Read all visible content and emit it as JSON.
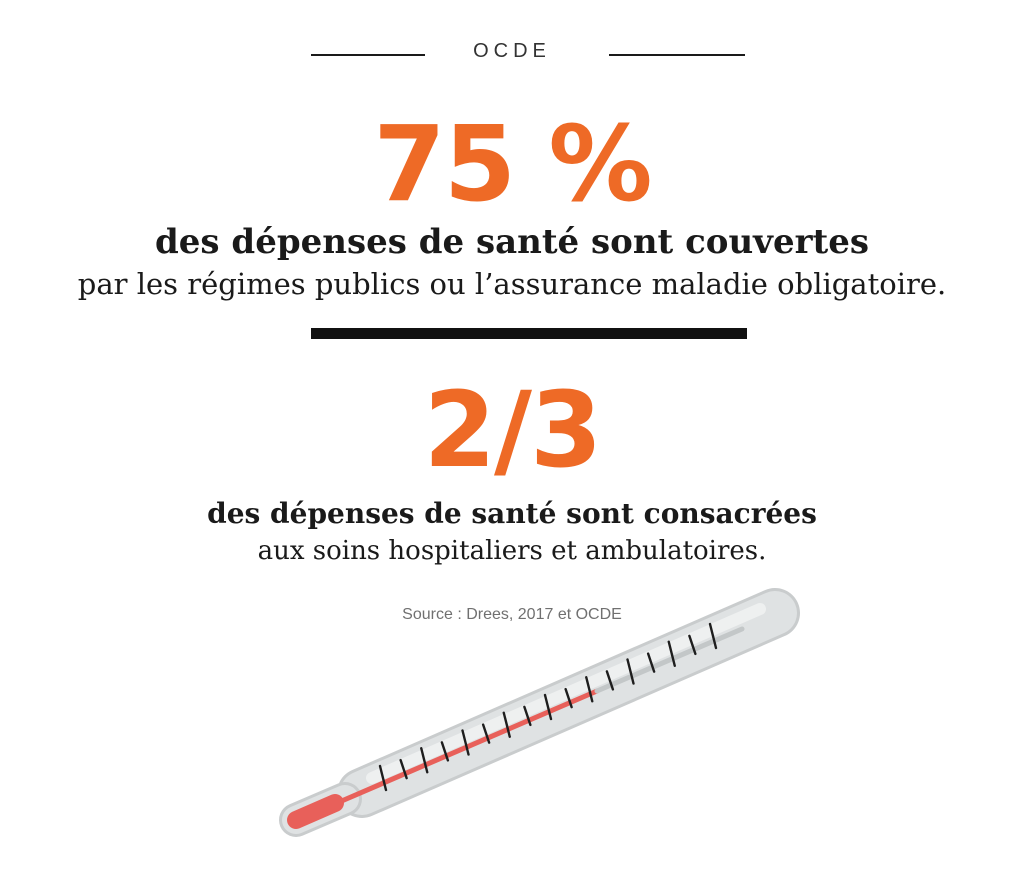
{
  "header": {
    "label": "OCDE"
  },
  "stats": [
    {
      "value": "75 %",
      "bold_text": "des dépenses de santé sont couvertes",
      "regular_text": "par les régimes publics ou l’assurance maladie obligatoire."
    },
    {
      "value": "2/3",
      "bold_text": "des dépenses de santé sont consacrées",
      "regular_text": "aux soins hospitaliers et ambulatoires."
    }
  ],
  "source": "Source : Drees, 2017 et OCDE",
  "thermometer": {
    "icon": "thermometer-icon",
    "fill_level": 0.62
  },
  "colors": {
    "accent": "#ee6a26",
    "text": "#1a1a1a",
    "mercury": "#e8605a",
    "glass": "#dcdfe0"
  }
}
